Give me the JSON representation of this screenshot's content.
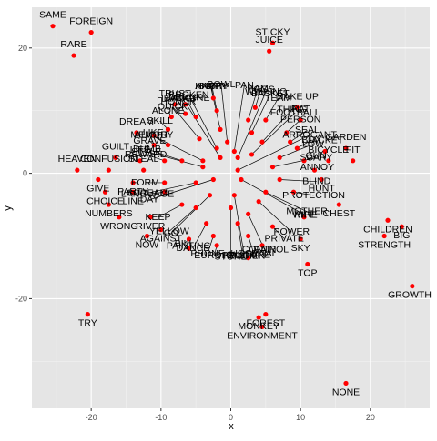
{
  "chart_data": {
    "type": "scatter",
    "title": "",
    "xlabel": "x",
    "ylabel": "y",
    "xlim": [
      -28.5,
      28.5
    ],
    "ylim": [
      -37.5,
      26.5
    ],
    "xticks": [
      -20,
      -10,
      0,
      10,
      20
    ],
    "yticks": [
      -20,
      0,
      20
    ],
    "grid": true,
    "background": "#e5e5e5",
    "point_color": "#ff0000",
    "series": [
      {
        "points": [
          {
            "x": -25.5,
            "y": 23.5,
            "label": "SAME"
          },
          {
            "x": -20.0,
            "y": 22.5,
            "label": "FOREIGN"
          },
          {
            "x": -22.5,
            "y": 18.8,
            "label": "RARE"
          },
          {
            "x": 6.0,
            "y": 20.8,
            "label": "STICKY"
          },
          {
            "x": 5.5,
            "y": 19.5,
            "label": "JUICE"
          },
          {
            "x": -2.5,
            "y": 12.0,
            "label": "HAPPY"
          },
          {
            "x": -6.5,
            "y": 11.0,
            "label": "HEADACHE"
          },
          {
            "x": -8.0,
            "y": 11.0,
            "label": "TRUST"
          },
          {
            "x": -2.0,
            "y": 10.0,
            "label": "ANGRY"
          },
          {
            "x": 3.5,
            "y": 10.5,
            "label": "EGGS"
          },
          {
            "x": 9.5,
            "y": 10.5,
            "label": "MAKE UP"
          },
          {
            "x": -5.0,
            "y": 9.0,
            "label": "DRUNK"
          },
          {
            "x": -8.5,
            "y": 9.0,
            "label": "ALONE"
          },
          {
            "x": 2.5,
            "y": 8.5,
            "label": "HAM"
          },
          {
            "x": 5.0,
            "y": 8.5,
            "label": "TEAM"
          },
          {
            "x": 10.0,
            "y": 8.5,
            "label": "RAT"
          },
          {
            "x": -9.0,
            "y": 7.0,
            "label": "SKILL"
          },
          {
            "x": -6.5,
            "y": 9.5,
            "label": "HONOR"
          },
          {
            "x": -1.5,
            "y": 7.0,
            "label": "SOFT"
          },
          {
            "x": 3.0,
            "y": 6.5,
            "label": "BASKET"
          },
          {
            "x": 8.0,
            "y": 6.5,
            "label": "PERSON"
          },
          {
            "x": -13.5,
            "y": 6.5,
            "label": "DREAM"
          },
          {
            "x": -11.0,
            "y": 6.0,
            "label": "LIKE"
          },
          {
            "x": -4.5,
            "y": 5.5,
            "label": "QUICK"
          },
          {
            "x": -0.5,
            "y": 5.0,
            "label": "BOWL"
          },
          {
            "x": 4.5,
            "y": 5.0,
            "label": "THING"
          },
          {
            "x": 8.5,
            "y": 5.0,
            "label": "SEAL"
          },
          {
            "x": -9.0,
            "y": 4.5,
            "label": "MEMORY"
          },
          {
            "x": -11.0,
            "y": 4.5,
            "label": "GRAVE"
          },
          {
            "x": -2.0,
            "y": 4.0,
            "label": "BROKEN"
          },
          {
            "x": 0.5,
            "y": 3.5,
            "label": "PAN"
          },
          {
            "x": 3.0,
            "y": 3.0,
            "label": "FOOTBALL"
          },
          {
            "x": 9.5,
            "y": 4.0,
            "label": "BOX"
          },
          {
            "x": 13.5,
            "y": 3.5,
            "label": "JACKET"
          },
          {
            "x": 16.5,
            "y": 4.0,
            "label": "GARDEN"
          },
          {
            "x": -7.0,
            "y": 2.0,
            "label": "DUMB"
          },
          {
            "x": -1.5,
            "y": 2.5,
            "label": "LAUGH"
          },
          {
            "x": 1.0,
            "y": 2.5,
            "label": "WISHING"
          },
          {
            "x": 7.0,
            "y": 2.5,
            "label": "LOW"
          },
          {
            "x": 10.5,
            "y": 2.0,
            "label": "GUN"
          },
          {
            "x": 14.0,
            "y": 2.0,
            "label": "BICYCLE"
          },
          {
            "x": 17.5,
            "y": 2.0,
            "label": "FIT"
          },
          {
            "x": -16.5,
            "y": 2.5,
            "label": "GUILT"
          },
          {
            "x": -13.0,
            "y": 2.0,
            "label": "LIFE"
          },
          {
            "x": -9.5,
            "y": 2.0,
            "label": "REWARD"
          },
          {
            "x": -4.0,
            "y": 2.0,
            "label": "ALIGHT"
          },
          {
            "x": -22.0,
            "y": 0.5,
            "label": "HEAVEN"
          },
          {
            "x": -17.5,
            "y": 0.5,
            "label": "CONFUSION"
          },
          {
            "x": -12.5,
            "y": 0.5,
            "label": "STEAL"
          },
          {
            "x": -4.0,
            "y": 1.0,
            "label": "STYLE"
          },
          {
            "x": 1.0,
            "y": 0.5,
            "label": "ARROGANT"
          },
          {
            "x": 6.0,
            "y": 1.0,
            "label": "SCARY"
          },
          {
            "x": 12.0,
            "y": 0.5,
            "label": "ANNOY"
          },
          {
            "x": -19.0,
            "y": -1.0,
            "label": "GIVE"
          },
          {
            "x": -14.0,
            "y": -1.5,
            "label": "PARTY"
          },
          {
            "x": -9.5,
            "y": -1.5,
            "label": "FORM"
          },
          {
            "x": -5.0,
            "y": -1.5,
            "label": "SCREAM"
          },
          {
            "x": -2.5,
            "y": -1.0,
            "label": "DAY"
          },
          {
            "x": 1.5,
            "y": -1.0,
            "label": "PIPE"
          },
          {
            "x": 7.0,
            "y": -1.0,
            "label": "BLIND"
          },
          {
            "x": 13.0,
            "y": -1.0,
            "label": "HUNT"
          },
          {
            "x": -18.0,
            "y": -3.0,
            "label": "CHOICE"
          },
          {
            "x": -14.0,
            "y": -3.0,
            "label": "LINE"
          },
          {
            "x": -9.5,
            "y": -3.0,
            "label": "LANGUAGE"
          },
          {
            "x": -3.0,
            "y": -3.5,
            "label": "GO"
          },
          {
            "x": 0.5,
            "y": -3.5,
            "label": "KITCHEN"
          },
          {
            "x": 5.0,
            "y": -3.0,
            "label": "MOTHER"
          },
          {
            "x": 9.0,
            "y": -3.0,
            "label": "PROTECTION"
          },
          {
            "x": -17.5,
            "y": -5.0,
            "label": "NUMBERS"
          },
          {
            "x": -7.0,
            "y": -5.0,
            "label": "KEEP"
          },
          {
            "x": -5.0,
            "y": -5.5,
            "label": "YELLOW"
          },
          {
            "x": 0.0,
            "y": -5.5,
            "label": "STONE"
          },
          {
            "x": 4.0,
            "y": -4.5,
            "label": "POWER"
          },
          {
            "x": 15.5,
            "y": -5.0,
            "label": "CHEST"
          },
          {
            "x": -16.0,
            "y": -7.0,
            "label": "WRONG"
          },
          {
            "x": -11.5,
            "y": -7.0,
            "label": "RIVER"
          },
          {
            "x": 2.5,
            "y": -6.5,
            "label": "RAIN"
          },
          {
            "x": 10.5,
            "y": -7.0,
            "label": "WIRE"
          },
          {
            "x": 22.5,
            "y": -7.5,
            "label": "CHILDREN"
          },
          {
            "x": -10.0,
            "y": -9.0,
            "label": "AGAINST"
          },
          {
            "x": -3.5,
            "y": -8.0,
            "label": "DANCE"
          },
          {
            "x": 1.0,
            "y": -8.0,
            "label": "ROOM"
          },
          {
            "x": 6.0,
            "y": -8.5,
            "label": "PRIVATE"
          },
          {
            "x": 24.5,
            "y": -8.5,
            "label": "BIG"
          },
          {
            "x": -12.0,
            "y": -10.0,
            "label": "NOW"
          },
          {
            "x": -6.0,
            "y": -10.5,
            "label": "BILL"
          },
          {
            "x": -2.5,
            "y": -10.0,
            "label": "PHONE"
          },
          {
            "x": 2.5,
            "y": -10.0,
            "label": "HOSPITAL"
          },
          {
            "x": 10.0,
            "y": -10.5,
            "label": "SKY"
          },
          {
            "x": 22.0,
            "y": -10.0,
            "label": "STRENGTH"
          },
          {
            "x": -6.0,
            "y": -12.0,
            "label": "PAINTING"
          },
          {
            "x": -2.0,
            "y": -11.5,
            "label": "EUROPE"
          },
          {
            "x": 4.5,
            "y": -11.5,
            "label": "CONTROL"
          },
          {
            "x": 2.5,
            "y": -13.5,
            "label": "CULTURE"
          },
          {
            "x": 11.0,
            "y": -14.5,
            "label": "TOP"
          },
          {
            "x": 26.0,
            "y": -18.0,
            "label": "GROWTH"
          },
          {
            "x": -20.5,
            "y": -22.5,
            "label": "TRY"
          },
          {
            "x": 5.0,
            "y": -22.5,
            "label": "FOREST"
          },
          {
            "x": 4.0,
            "y": -23.0,
            "label": "MONKEY"
          },
          {
            "x": 4.5,
            "y": -24.5,
            "label": "ENVIRONMENT"
          },
          {
            "x": 16.5,
            "y": -33.5,
            "label": "NONE"
          }
        ]
      }
    ]
  }
}
